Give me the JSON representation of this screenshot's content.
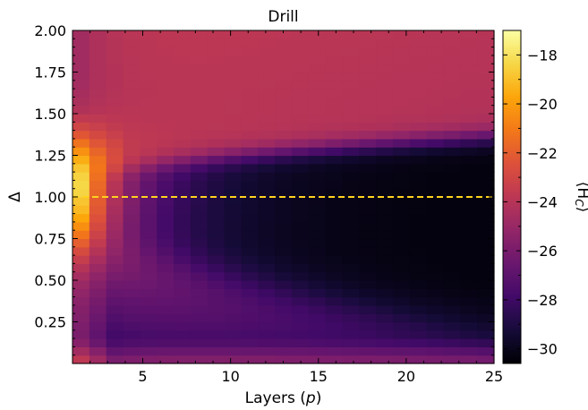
{
  "chart_data": {
    "type": "heatmap",
    "title": "Drill",
    "xlabel": "Layers (",
    "xlabel_var": "p",
    "xlabel_end": ")",
    "ylabel": "Δ",
    "colorbar_label": "⟨H",
    "colorbar_label_sub": "C",
    "colorbar_label_end": "⟩",
    "xlim": [
      1,
      25
    ],
    "ylim": [
      0.0,
      2.0
    ],
    "x_ticks": [
      5,
      10,
      15,
      20,
      25
    ],
    "x_tick_labels": [
      "5",
      "10",
      "15",
      "20",
      "25"
    ],
    "y_ticks": [
      0.25,
      0.5,
      0.75,
      1.0,
      1.25,
      1.5,
      1.75,
      2.0
    ],
    "y_tick_labels": [
      "0.25",
      "0.50",
      "0.75",
      "1.00",
      "1.25",
      "1.50",
      "1.75",
      "2.00"
    ],
    "colorbar_range": [
      -30.6,
      -17.0
    ],
    "colorbar_ticks": [
      -30,
      -28,
      -26,
      -24,
      -22,
      -20,
      -18
    ],
    "colorbar_tick_labels": [
      "−30",
      "−28",
      "−26",
      "−24",
      "−22",
      "−20",
      "−18"
    ],
    "colormap": "inferno",
    "reference_line": {
      "y": 1.0,
      "style": "dashed",
      "color": "#ffd21e"
    },
    "grid": false,
    "nx": 25,
    "ny": 40
  }
}
